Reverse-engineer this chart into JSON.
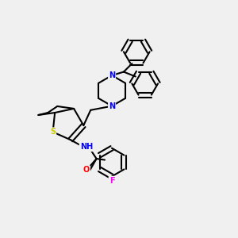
{
  "background_color": "#f0f0f0",
  "bond_color": "#000000",
  "atom_colors": {
    "S": "#cccc00",
    "N": "#0000ff",
    "O": "#ff0000",
    "F": "#ff00ff",
    "H": "#000000",
    "C": "#000000"
  },
  "figsize": [
    3.0,
    3.0
  ],
  "dpi": 100
}
